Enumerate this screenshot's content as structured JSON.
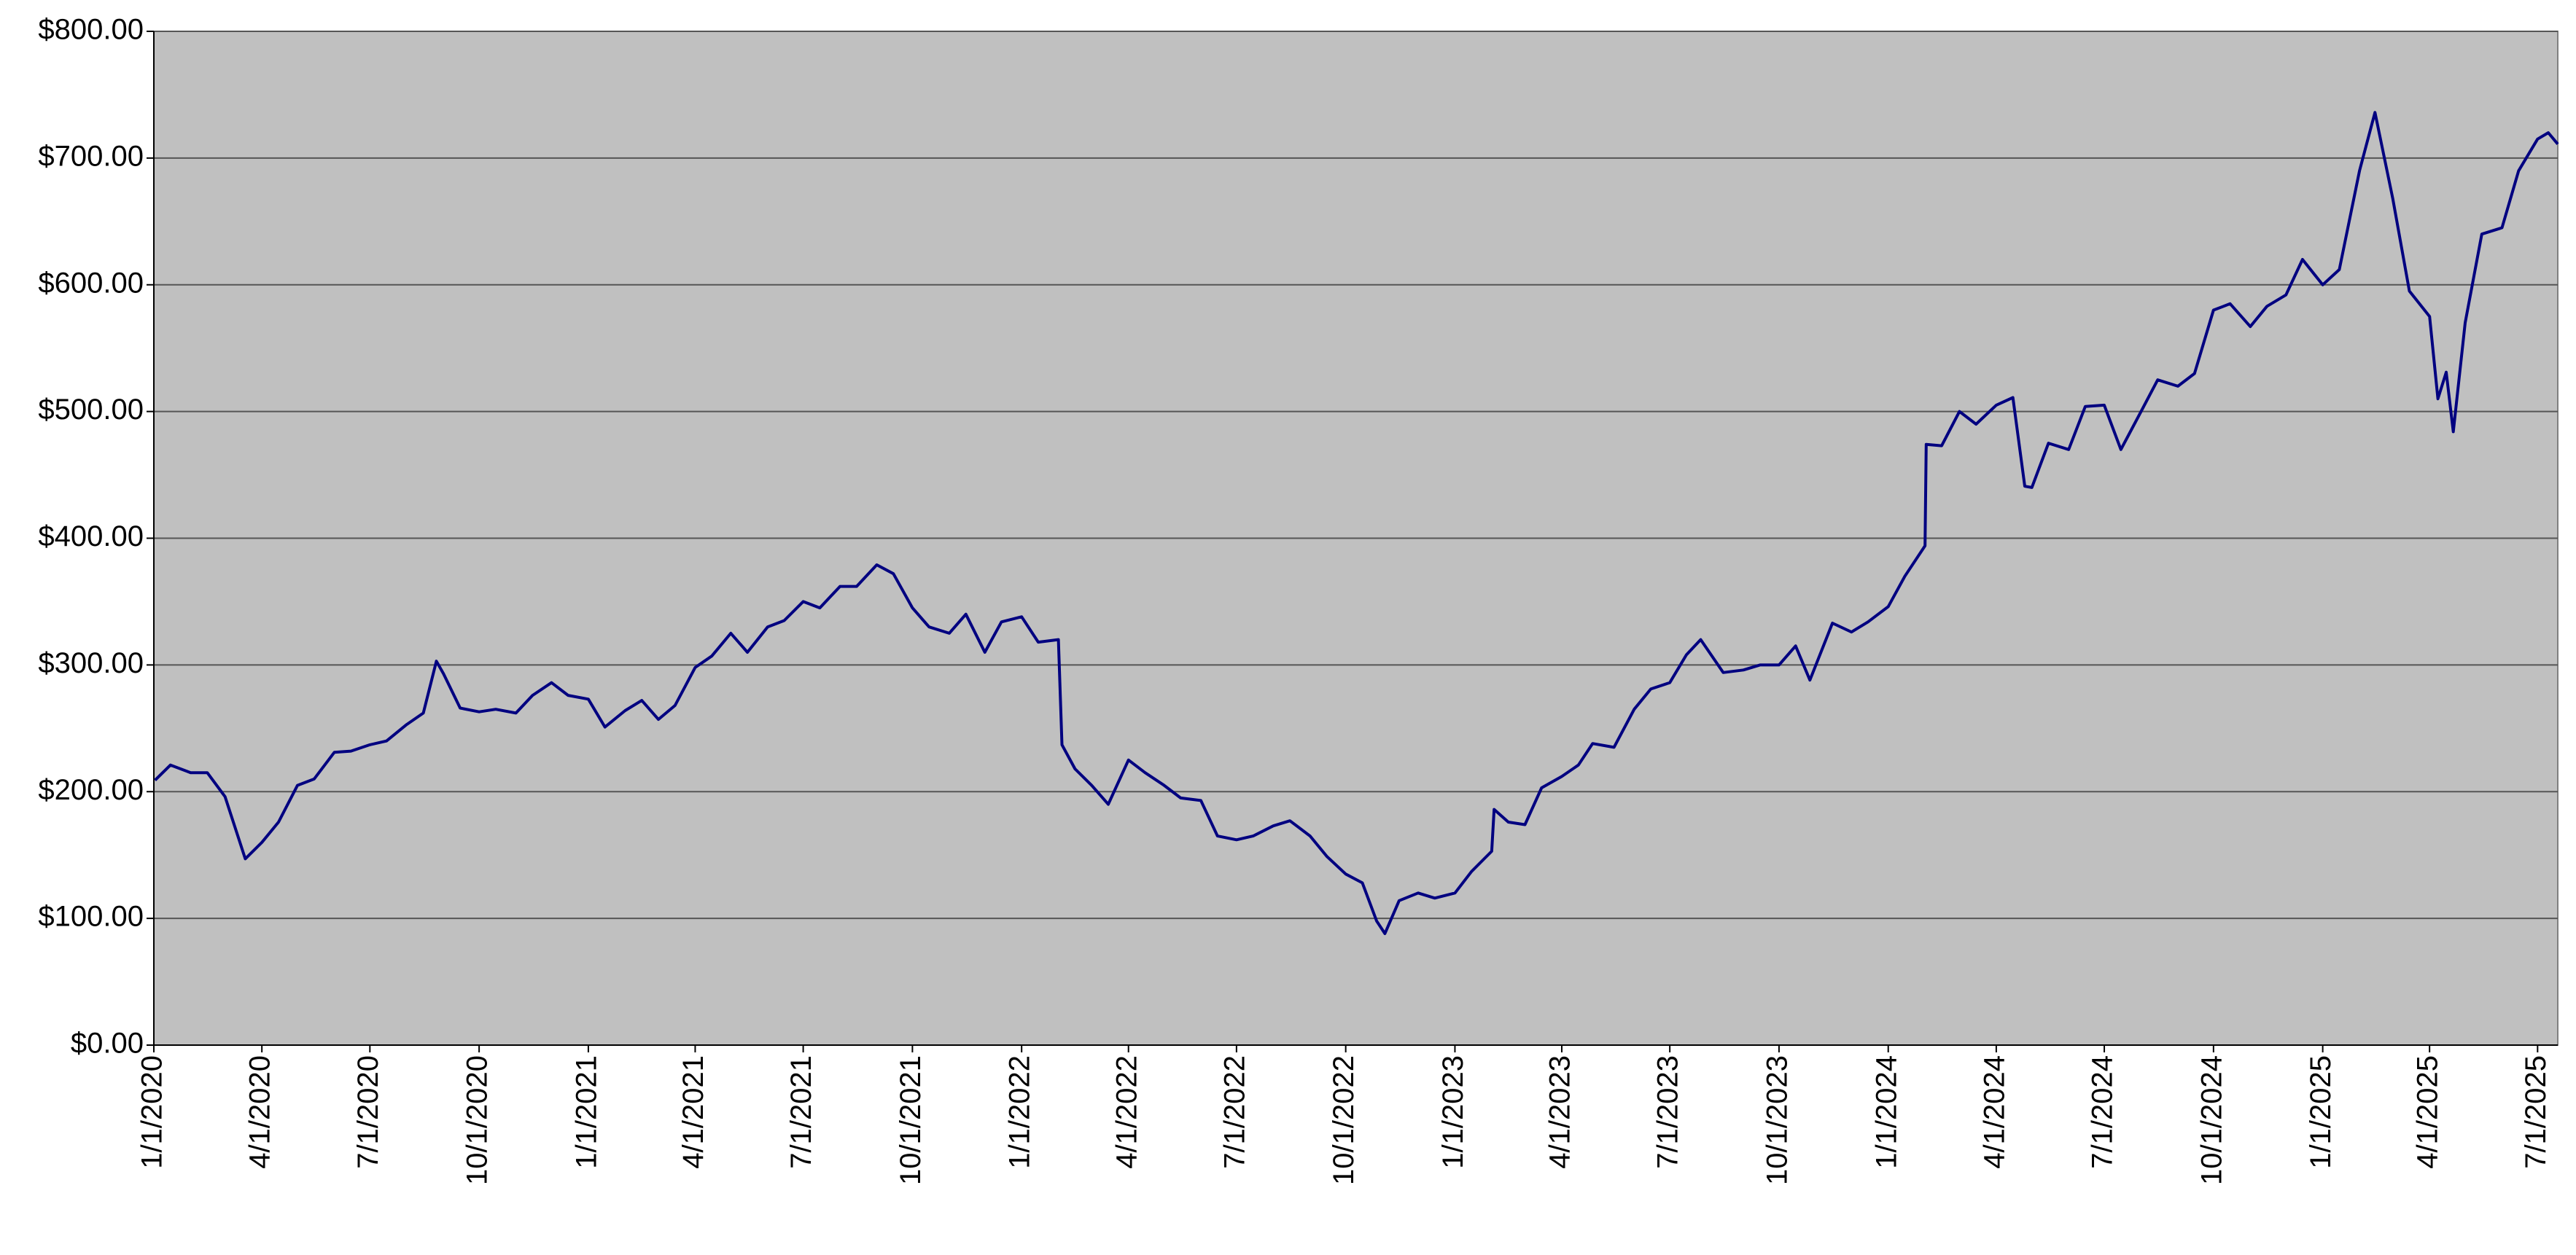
{
  "chart_data": {
    "type": "line",
    "x": [
      "2020-01-02",
      "2020-01-15",
      "2020-02-01",
      "2020-02-15",
      "2020-03-01",
      "2020-03-18",
      "2020-04-01",
      "2020-04-15",
      "2020-05-01",
      "2020-05-15",
      "2020-06-01",
      "2020-06-15",
      "2020-07-01",
      "2020-07-15",
      "2020-08-01",
      "2020-08-15",
      "2020-08-26",
      "2020-09-01",
      "2020-09-15",
      "2020-10-01",
      "2020-10-15",
      "2020-11-01",
      "2020-11-15",
      "2020-12-01",
      "2020-12-15",
      "2021-01-01",
      "2021-01-15",
      "2021-02-01",
      "2021-02-15",
      "2021-03-01",
      "2021-03-15",
      "2021-04-01",
      "2021-04-15",
      "2021-05-01",
      "2021-05-15",
      "2021-06-01",
      "2021-06-15",
      "2021-07-01",
      "2021-07-15",
      "2021-08-01",
      "2021-08-15",
      "2021-09-01",
      "2021-09-15",
      "2021-10-01",
      "2021-10-15",
      "2021-11-01",
      "2021-11-15",
      "2021-12-01",
      "2021-12-15",
      "2022-01-01",
      "2022-01-15",
      "2022-02-01",
      "2022-02-04",
      "2022-02-15",
      "2022-03-01",
      "2022-03-15",
      "2022-04-01",
      "2022-04-15",
      "2022-05-01",
      "2022-05-15",
      "2022-06-01",
      "2022-06-15",
      "2022-07-01",
      "2022-07-15",
      "2022-08-01",
      "2022-08-15",
      "2022-09-01",
      "2022-09-15",
      "2022-10-01",
      "2022-10-15",
      "2022-10-27",
      "2022-11-03",
      "2022-11-15",
      "2022-12-01",
      "2022-12-15",
      "2023-01-01",
      "2023-01-15",
      "2023-02-01",
      "2023-02-03",
      "2023-02-15",
      "2023-03-01",
      "2023-03-15",
      "2023-04-01",
      "2023-04-15",
      "2023-04-27",
      "2023-05-15",
      "2023-06-01",
      "2023-06-15",
      "2023-07-01",
      "2023-07-15",
      "2023-07-27",
      "2023-08-15",
      "2023-09-01",
      "2023-09-15",
      "2023-10-01",
      "2023-10-15",
      "2023-10-27",
      "2023-11-15",
      "2023-12-01",
      "2023-12-15",
      "2024-01-01",
      "2024-01-15",
      "2024-02-01",
      "2024-02-02",
      "2024-02-15",
      "2024-03-01",
      "2024-03-15",
      "2024-04-01",
      "2024-04-15",
      "2024-04-25",
      "2024-05-01",
      "2024-05-15",
      "2024-06-01",
      "2024-06-15",
      "2024-07-01",
      "2024-07-15",
      "2024-08-01",
      "2024-08-15",
      "2024-09-01",
      "2024-09-15",
      "2024-10-01",
      "2024-10-15",
      "2024-11-01",
      "2024-11-15",
      "2024-12-01",
      "2024-12-15",
      "2025-01-01",
      "2025-01-15",
      "2025-02-01",
      "2025-02-14",
      "2025-03-01",
      "2025-03-15",
      "2025-04-01",
      "2025-04-08",
      "2025-04-15",
      "2025-04-21",
      "2025-05-01",
      "2025-05-15",
      "2025-06-01",
      "2025-06-15",
      "2025-07-01",
      "2025-07-10",
      "2025-07-18"
    ],
    "values": [
      209,
      221,
      215,
      215,
      196,
      147,
      160,
      176,
      205,
      210,
      231,
      232,
      237,
      240,
      253,
      262,
      303,
      293,
      266,
      263,
      265,
      262,
      276,
      286,
      276,
      273,
      251,
      264,
      272,
      257,
      268,
      298,
      307,
      325,
      310,
      330,
      335,
      350,
      345,
      362,
      362,
      379,
      372,
      345,
      330,
      325,
      340,
      310,
      334,
      338,
      318,
      320,
      237,
      218,
      205,
      190,
      225,
      215,
      205,
      195,
      193,
      165,
      162,
      165,
      173,
      177,
      165,
      149,
      135,
      128,
      98,
      88,
      114,
      120,
      116,
      120,
      137,
      153,
      186,
      176,
      174,
      203,
      212,
      221,
      238,
      235,
      265,
      281,
      286,
      308,
      320,
      294,
      296,
      300,
      300,
      315,
      288,
      333,
      326,
      334,
      346,
      370,
      394,
      474,
      473,
      500,
      490,
      505,
      511,
      441,
      440,
      475,
      470,
      504,
      505,
      470,
      500,
      525,
      520,
      530,
      580,
      585,
      567,
      583,
      592,
      620,
      600,
      612,
      690,
      736,
      668,
      595,
      575,
      510,
      531,
      484,
      570,
      640,
      645,
      690,
      715,
      720,
      711
    ],
    "color": "#000080",
    "xlim": [
      "2020-01-01",
      "2025-07-18"
    ],
    "xticks": [
      {
        "value": "2020-01-01",
        "label": "1/1/2020"
      },
      {
        "value": "2020-04-01",
        "label": "4/1/2020"
      },
      {
        "value": "2020-07-01",
        "label": "7/1/2020"
      },
      {
        "value": "2020-10-01",
        "label": "10/1/2020"
      },
      {
        "value": "2021-01-01",
        "label": "1/1/2021"
      },
      {
        "value": "2021-04-01",
        "label": "4/1/2021"
      },
      {
        "value": "2021-07-01",
        "label": "7/1/2021"
      },
      {
        "value": "2021-10-01",
        "label": "10/1/2021"
      },
      {
        "value": "2022-01-01",
        "label": "1/1/2022"
      },
      {
        "value": "2022-04-01",
        "label": "4/1/2022"
      },
      {
        "value": "2022-07-01",
        "label": "7/1/2022"
      },
      {
        "value": "2022-10-01",
        "label": "10/1/2022"
      },
      {
        "value": "2023-01-01",
        "label": "1/1/2023"
      },
      {
        "value": "2023-04-01",
        "label": "4/1/2023"
      },
      {
        "value": "2023-07-01",
        "label": "7/1/2023"
      },
      {
        "value": "2023-10-01",
        "label": "10/1/2023"
      },
      {
        "value": "2024-01-01",
        "label": "1/1/2024"
      },
      {
        "value": "2024-04-01",
        "label": "4/1/2024"
      },
      {
        "value": "2024-07-01",
        "label": "7/1/2024"
      },
      {
        "value": "2024-10-01",
        "label": "10/1/2024"
      },
      {
        "value": "2025-01-01",
        "label": "1/1/2025"
      },
      {
        "value": "2025-04-01",
        "label": "4/1/2025"
      },
      {
        "value": "2025-07-01",
        "label": "7/1/2025"
      }
    ],
    "ylim": [
      0,
      800
    ],
    "yticks": [
      {
        "value": 0,
        "label": "$0.00"
      },
      {
        "value": 100,
        "label": "$100.00"
      },
      {
        "value": 200,
        "label": "$200.00"
      },
      {
        "value": 300,
        "label": "$300.00"
      },
      {
        "value": 400,
        "label": "$400.00"
      },
      {
        "value": 500,
        "label": "$500.00"
      },
      {
        "value": 600,
        "label": "$600.00"
      },
      {
        "value": 700,
        "label": "$700.00"
      },
      {
        "value": 800,
        "label": "$800.00"
      }
    ],
    "grid": true,
    "plot_background": "#c0c0c0"
  }
}
